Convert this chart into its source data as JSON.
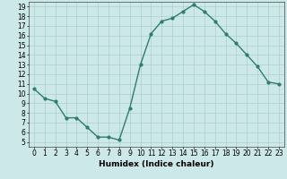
{
  "x": [
    0,
    1,
    2,
    3,
    4,
    5,
    6,
    7,
    8,
    9,
    10,
    11,
    12,
    13,
    14,
    15,
    16,
    17,
    18,
    19,
    20,
    21,
    22,
    23
  ],
  "y": [
    10.5,
    9.5,
    9.2,
    7.5,
    7.5,
    6.5,
    5.5,
    5.5,
    5.2,
    8.5,
    13.0,
    16.2,
    17.5,
    17.8,
    18.5,
    19.2,
    18.5,
    17.5,
    16.2,
    15.2,
    14.0,
    12.8,
    11.2,
    11.0
  ],
  "line_color": "#2e7d6e",
  "marker": "o",
  "markersize": 2.0,
  "linewidth": 1.0,
  "xlabel": "Humidex (Indice chaleur)",
  "xlim": [
    -0.5,
    23.5
  ],
  "ylim": [
    4.5,
    19.5
  ],
  "yticks": [
    5,
    6,
    7,
    8,
    9,
    10,
    11,
    12,
    13,
    14,
    15,
    16,
    17,
    18,
    19
  ],
  "xticks": [
    0,
    1,
    2,
    3,
    4,
    5,
    6,
    7,
    8,
    9,
    10,
    11,
    12,
    13,
    14,
    15,
    16,
    17,
    18,
    19,
    20,
    21,
    22,
    23
  ],
  "bg_color": "#cce8e8",
  "grid_color": "#aacfcf",
  "tick_label_fontsize": 5.5,
  "xlabel_fontsize": 6.5
}
